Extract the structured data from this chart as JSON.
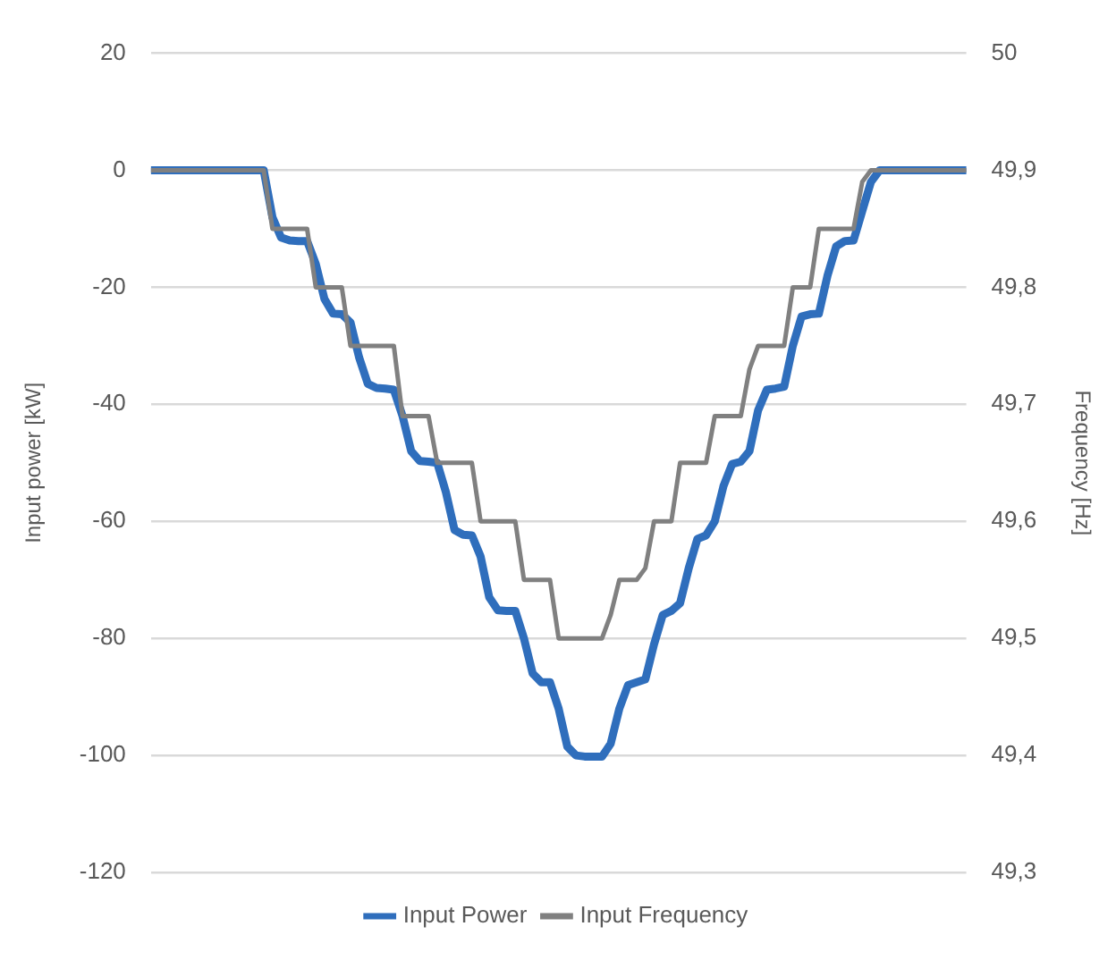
{
  "chart_data": {
    "type": "line",
    "ylabel": "Input power [kW]",
    "y2label": "Frequency [Hz]",
    "categories": [
      null,
      null,
      null,
      null,
      null,
      null,
      null,
      null,
      null,
      null,
      null,
      null,
      null,
      null,
      null,
      null,
      null,
      null,
      null,
      null,
      null,
      null,
      null,
      null,
      null,
      null,
      null,
      null,
      null,
      null,
      null,
      null,
      null,
      null,
      null,
      null,
      null,
      null,
      null,
      null,
      null,
      null,
      null,
      null,
      null,
      null,
      null,
      null,
      null,
      null,
      null,
      null,
      null,
      null,
      null,
      null,
      null,
      null,
      null,
      null,
      null,
      null,
      null,
      null,
      null,
      null,
      null,
      null,
      null,
      null,
      null,
      null,
      null,
      null,
      null,
      null,
      null,
      null,
      null,
      null,
      null,
      null,
      null,
      null,
      null,
      null,
      null,
      null,
      null,
      null,
      null,
      null,
      null,
      null,
      null
    ],
    "series": [
      {
        "name": "Input Power",
        "color": "#2f6ebc",
        "values": [
          0,
          0,
          0,
          0,
          0,
          0,
          0,
          0,
          0,
          0,
          0,
          0,
          0,
          0,
          -8,
          -11.5,
          -12,
          -12.1,
          -12.1,
          -16,
          -22,
          -24.5,
          -24.6,
          -26,
          -32,
          -36.5,
          -37.2,
          -37.3,
          -37.5,
          -42,
          -48,
          -49.7,
          -49.8,
          -50,
          -55,
          -61.5,
          -62.3,
          -62.4,
          -66,
          -73,
          -75.2,
          -75.3,
          -75.3,
          -80,
          -86,
          -87.5,
          -87.5,
          -92,
          -98.5,
          -100,
          -100.2,
          -100.2,
          -100.2,
          -98,
          -92,
          -88,
          -87.5,
          -87,
          -81,
          -76,
          -75.3,
          -74,
          -68,
          -63,
          -62.4,
          -60,
          -54,
          -50.2,
          -49.8,
          -48,
          -41,
          -37.5,
          -37.3,
          -37,
          -30,
          -25,
          -24.6,
          -24.5,
          -18,
          -13,
          -12.1,
          -12,
          -7,
          -2,
          0,
          0,
          0,
          0,
          0,
          0,
          0,
          0,
          0,
          0,
          0
        ]
      },
      {
        "name": "Input Frequency",
        "color": "#808080",
        "axis": "y2",
        "values": [
          49.9,
          49.9,
          49.9,
          49.9,
          49.9,
          49.9,
          49.9,
          49.9,
          49.9,
          49.9,
          49.9,
          49.9,
          49.9,
          49.9,
          49.85,
          49.85,
          49.85,
          49.85,
          49.85,
          49.8,
          49.8,
          49.8,
          49.8,
          49.75,
          49.75,
          49.75,
          49.75,
          49.75,
          49.75,
          49.69,
          49.69,
          49.69,
          49.69,
          49.65,
          49.65,
          49.65,
          49.65,
          49.65,
          49.6,
          49.6,
          49.6,
          49.6,
          49.6,
          49.55,
          49.55,
          49.55,
          49.55,
          49.5,
          49.5,
          49.5,
          49.5,
          49.5,
          49.5,
          49.52,
          49.55,
          49.55,
          49.55,
          49.56,
          49.6,
          49.6,
          49.6,
          49.65,
          49.65,
          49.65,
          49.65,
          49.69,
          49.69,
          49.69,
          49.69,
          49.73,
          49.75,
          49.75,
          49.75,
          49.75,
          49.8,
          49.8,
          49.8,
          49.85,
          49.85,
          49.85,
          49.85,
          49.85,
          49.89,
          49.9,
          49.9,
          49.9,
          49.9,
          49.9,
          49.9,
          49.9,
          49.9,
          49.9,
          49.9,
          49.9,
          49.9
        ]
      }
    ],
    "ylim": [
      -120,
      20
    ],
    "yticks": [
      -120,
      -100,
      -80,
      -60,
      -40,
      -20,
      0,
      20
    ],
    "y2lim": [
      49.3,
      50
    ],
    "y2ticks": [
      {
        "value": 49.3,
        "label": "49,3"
      },
      {
        "value": 49.4,
        "label": "49,4"
      },
      {
        "value": 49.5,
        "label": "49,5"
      },
      {
        "value": 49.6,
        "label": "49,6"
      },
      {
        "value": 49.7,
        "label": "49,7"
      },
      {
        "value": 49.8,
        "label": "49,8"
      },
      {
        "value": 49.9,
        "label": "49,9"
      },
      50
    ],
    "grid": "y",
    "legend": "bottom",
    "tick_labels": "y",
    "marker": "none",
    "line_style": "solid"
  }
}
